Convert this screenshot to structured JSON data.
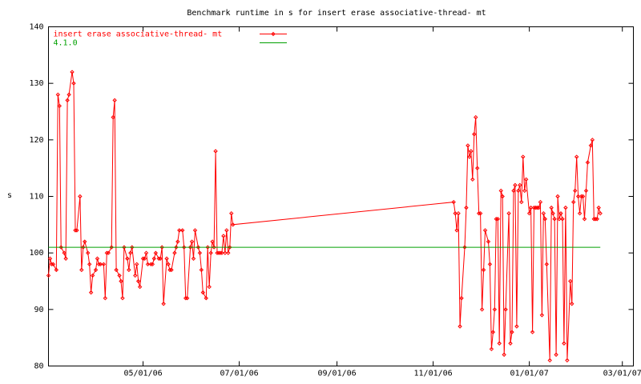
{
  "chart_data": {
    "type": "line",
    "title": "Benchmark runtime in s for insert erase associative-thread-  mt",
    "y_label": "s",
    "xlim": [
      "2006-03-02",
      "2007-03-08"
    ],
    "xticks": [
      {
        "value": "2006-05-01",
        "label": "05/01/06"
      },
      {
        "value": "2006-07-01",
        "label": "07/01/06"
      },
      {
        "value": "2006-09-01",
        "label": "09/01/06"
      },
      {
        "value": "2006-11-01",
        "label": "11/01/06"
      },
      {
        "value": "2007-01-01",
        "label": "01/01/07"
      },
      {
        "value": "2007-03-01",
        "label": "03/01/07"
      }
    ],
    "ylim": [
      80,
      140
    ],
    "yticks": [
      80,
      90,
      100,
      110,
      120,
      130,
      140
    ],
    "legend": "top-left",
    "series": [
      {
        "name": "insert erase associative-thread-  mt",
        "color": "#ff0000",
        "markers": true,
        "x": [
          "2006-03-02",
          "2006-03-03",
          "2006-03-04",
          "2006-03-05",
          "2006-03-07",
          "2006-03-08",
          "2006-03-09",
          "2006-03-10",
          "2006-03-12",
          "2006-03-13",
          "2006-03-14",
          "2006-03-15",
          "2006-03-17",
          "2006-03-18",
          "2006-03-19",
          "2006-03-20",
          "2006-03-22",
          "2006-03-23",
          "2006-03-24",
          "2006-03-25",
          "2006-03-27",
          "2006-03-28",
          "2006-03-29",
          "2006-03-30",
          "2006-04-01",
          "2006-04-02",
          "2006-04-03",
          "2006-04-04",
          "2006-04-06",
          "2006-04-07",
          "2006-04-08",
          "2006-04-09",
          "2006-04-11",
          "2006-04-12",
          "2006-04-13",
          "2006-04-14",
          "2006-04-16",
          "2006-04-17",
          "2006-04-18",
          "2006-04-19",
          "2006-04-21",
          "2006-04-22",
          "2006-04-23",
          "2006-04-24",
          "2006-04-26",
          "2006-04-27",
          "2006-04-28",
          "2006-04-29",
          "2006-05-01",
          "2006-05-02",
          "2006-05-03",
          "2006-05-04",
          "2006-05-06",
          "2006-05-07",
          "2006-05-08",
          "2006-05-09",
          "2006-05-11",
          "2006-05-12",
          "2006-05-13",
          "2006-05-14",
          "2006-05-16",
          "2006-05-17",
          "2006-05-18",
          "2006-05-19",
          "2006-05-21",
          "2006-05-22",
          "2006-05-23",
          "2006-05-24",
          "2006-05-26",
          "2006-05-27",
          "2006-05-28",
          "2006-05-29",
          "2006-05-31",
          "2006-06-01",
          "2006-06-02",
          "2006-06-03",
          "2006-06-05",
          "2006-06-06",
          "2006-06-07",
          "2006-06-08",
          "2006-06-10",
          "2006-06-11",
          "2006-06-12",
          "2006-06-13",
          "2006-06-14",
          "2006-06-15",
          "2006-06-16",
          "2006-06-17",
          "2006-06-18",
          "2006-06-19",
          "2006-06-20",
          "2006-06-21",
          "2006-06-22",
          "2006-06-23",
          "2006-06-24",
          "2006-06-25",
          "2006-06-26",
          "2006-06-27",
          "2006-11-14",
          "2006-11-15",
          "2006-11-16",
          "2006-11-17",
          "2006-11-18",
          "2006-11-19",
          "2006-11-21",
          "2006-11-22",
          "2006-11-23",
          "2006-11-24",
          "2006-11-25",
          "2006-11-26",
          "2006-11-27",
          "2006-11-28",
          "2006-11-29",
          "2006-11-30",
          "2006-12-01",
          "2006-12-02",
          "2006-12-03",
          "2006-12-04",
          "2006-12-06",
          "2006-12-07",
          "2006-12-08",
          "2006-12-09",
          "2006-12-10",
          "2006-12-11",
          "2006-12-12",
          "2006-12-13",
          "2006-12-14",
          "2006-12-15",
          "2006-12-16",
          "2006-12-17",
          "2006-12-19",
          "2006-12-20",
          "2006-12-21",
          "2006-12-22",
          "2006-12-23",
          "2006-12-24",
          "2006-12-25",
          "2006-12-26",
          "2006-12-27",
          "2006-12-28",
          "2006-12-29",
          "2006-12-30",
          "2007-01-01",
          "2007-01-02",
          "2007-01-03",
          "2007-01-04",
          "2007-01-05",
          "2007-01-06",
          "2007-01-07",
          "2007-01-08",
          "2007-01-09",
          "2007-01-10",
          "2007-01-11",
          "2007-01-12",
          "2007-01-14",
          "2007-01-15",
          "2007-01-16",
          "2007-01-17",
          "2007-01-18",
          "2007-01-19",
          "2007-01-20",
          "2007-01-21",
          "2007-01-22",
          "2007-01-23",
          "2007-01-24",
          "2007-01-25",
          "2007-01-27",
          "2007-01-28",
          "2007-01-29",
          "2007-01-30",
          "2007-01-31",
          "2007-02-01",
          "2007-02-02",
          "2007-02-03",
          "2007-02-04",
          "2007-02-05",
          "2007-02-06",
          "2007-02-07",
          "2007-02-09",
          "2007-02-10",
          "2007-02-11",
          "2007-02-12",
          "2007-02-13",
          "2007-02-14",
          "2007-02-15"
        ],
        "values": [
          96,
          99,
          98,
          98,
          97,
          128,
          126,
          101,
          100,
          99,
          127,
          128,
          132,
          130,
          104,
          104,
          110,
          97,
          101,
          102,
          100,
          98,
          93,
          96,
          97,
          99,
          98,
          98,
          98,
          92,
          100,
          100,
          101,
          124,
          127,
          97,
          96,
          95,
          92,
          101,
          99,
          97,
          100,
          101,
          96,
          98,
          95,
          94,
          99,
          99,
          100,
          98,
          98,
          98,
          99,
          100,
          99,
          99,
          101,
          91,
          99,
          98,
          97,
          97,
          100,
          101,
          102,
          104,
          104,
          101,
          92,
          92,
          101,
          102,
          99,
          104,
          101,
          100,
          97,
          93,
          92,
          101,
          94,
          100,
          102,
          101,
          118,
          100,
          100,
          100,
          100,
          103,
          100,
          104,
          100,
          101,
          107,
          105,
          109,
          107,
          104,
          107,
          87,
          92,
          101,
          108,
          119,
          117,
          118,
          113,
          121,
          124,
          115,
          107,
          107,
          90,
          97,
          104,
          102,
          98,
          83,
          86,
          90,
          106,
          106,
          84,
          111,
          110,
          82,
          90,
          107,
          84,
          86,
          111,
          112,
          87,
          111,
          112,
          109,
          117,
          111,
          113,
          107,
          108,
          86,
          108,
          108,
          108,
          108,
          109,
          89,
          107,
          106,
          98,
          81,
          108,
          107,
          106,
          82,
          110,
          106,
          107,
          106,
          84,
          108,
          81,
          95,
          91,
          109,
          111,
          117,
          110,
          107,
          110,
          110,
          106,
          111,
          116,
          119,
          120,
          106,
          106,
          106,
          108,
          107
        ]
      },
      {
        "name": "4.1.0",
        "color": "#00a000",
        "markers": false,
        "x": [
          "2006-03-02",
          "2007-02-15"
        ],
        "values": [
          101,
          101
        ]
      }
    ]
  }
}
